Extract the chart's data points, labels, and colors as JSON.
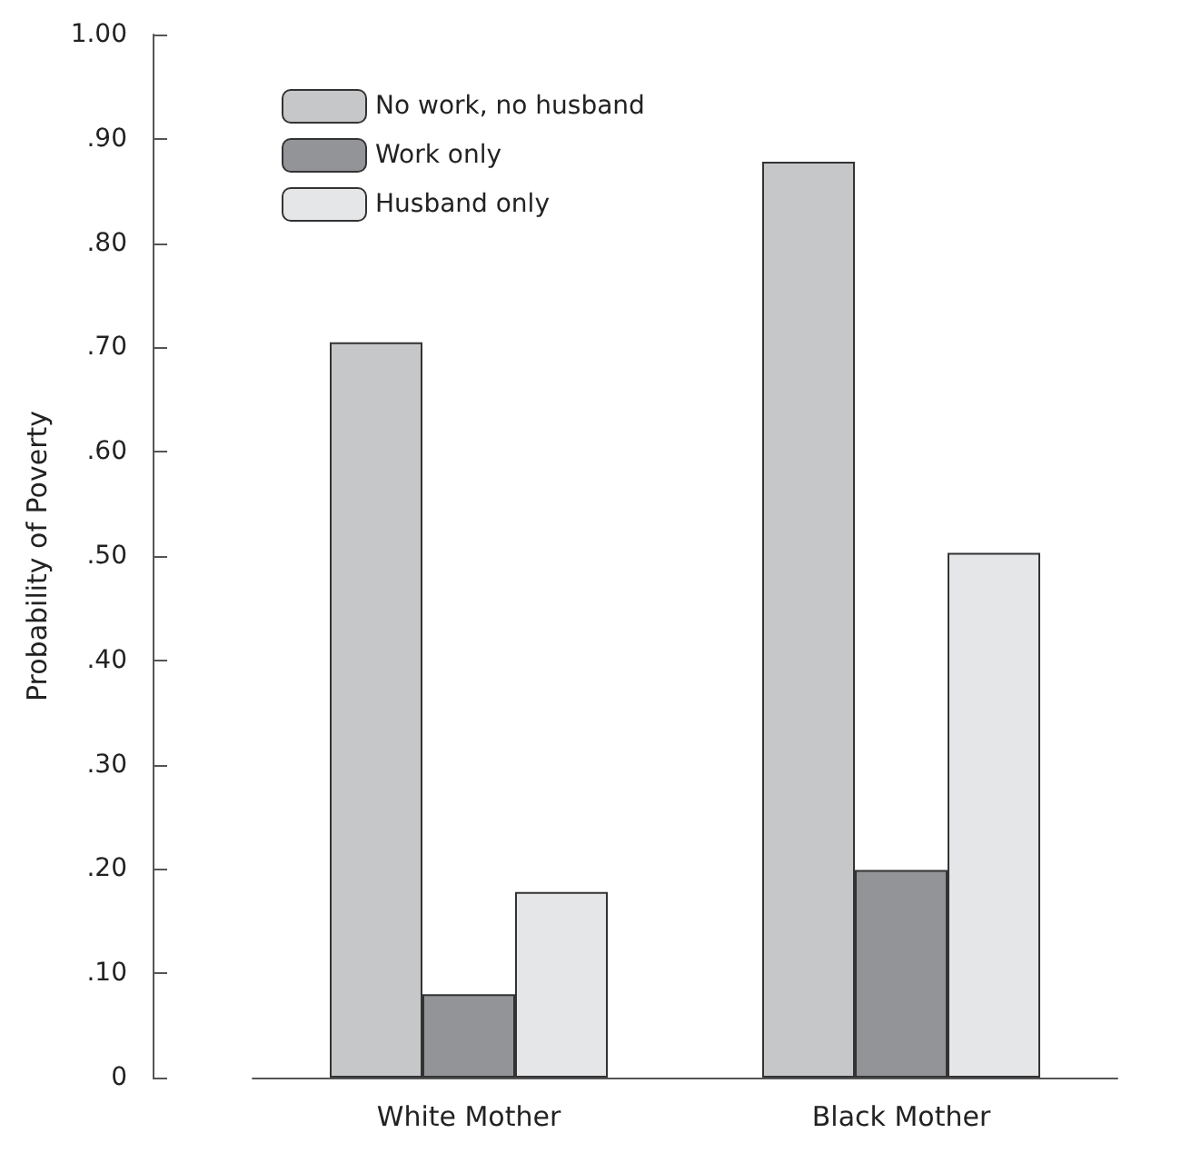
{
  "chart_data": {
    "type": "bar",
    "ylabel": "Probability of Poverty",
    "categories": [
      "White Mother",
      "Black Mother"
    ],
    "series": [
      {
        "name": "No work, no husband",
        "color": "#c6c7c9",
        "values": [
          0.705,
          0.878
        ]
      },
      {
        "name": "Work only",
        "color": "#939497",
        "values": [
          0.08,
          0.199
        ]
      },
      {
        "name": "Husband only",
        "color": "#e5e6e8",
        "values": [
          0.178,
          0.503
        ]
      }
    ],
    "ylim": [
      0,
      1
    ],
    "yticks": [
      0,
      {
        "value": 0.1,
        "label": ".10"
      },
      {
        "value": 0.2,
        "label": ".20"
      },
      {
        "value": 0.3,
        "label": ".30"
      },
      {
        "value": 0.4,
        "label": ".40"
      },
      {
        "value": 0.5,
        "label": ".50"
      },
      {
        "value": 0.6,
        "label": ".60"
      },
      {
        "value": 0.7,
        "label": ".70"
      },
      {
        "value": 0.8,
        "label": ".80"
      },
      {
        "value": 0.9,
        "label": ".90"
      },
      {
        "value": 1,
        "label": "1.00"
      }
    ],
    "grid": false,
    "legend": "top left"
  }
}
